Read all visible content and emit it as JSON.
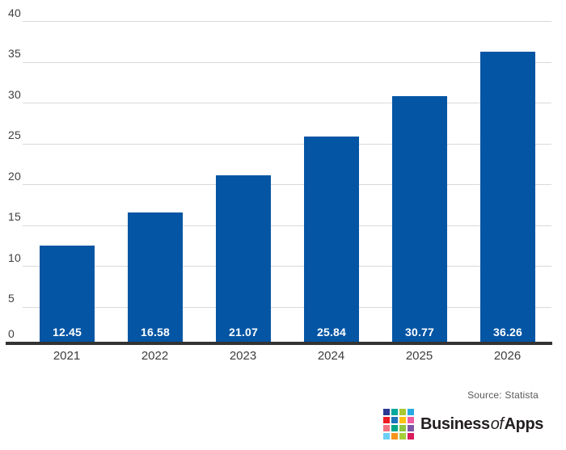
{
  "chart_data": {
    "type": "bar",
    "categories": [
      "2021",
      "2022",
      "2023",
      "2024",
      "2025",
      "2026"
    ],
    "values": [
      12.45,
      16.58,
      21.07,
      25.84,
      30.77,
      36.26
    ],
    "value_labels": [
      "12.45",
      "16.58",
      "21.07",
      "25.84",
      "30.77",
      "36.26"
    ],
    "title": "",
    "xlabel": "",
    "ylabel": "",
    "ylim": [
      0,
      40
    ],
    "yticks": [
      0,
      5,
      10,
      15,
      20,
      25,
      30,
      35,
      40
    ],
    "grid": "horizontal",
    "legend": "none",
    "bar_color": "#0455a4",
    "bar_label_color": "#ffffff",
    "gridline_color": "#d9d9d9",
    "axis_line_color": "#333333",
    "tick_label_color": "#3f3f3f"
  },
  "footer": {
    "source_label": "Source: Statista",
    "logo": {
      "brand_part1": "Business",
      "brand_part2": "of",
      "brand_part3": "Apps",
      "grid_colors": [
        "#2b3990",
        "#00a79d",
        "#aac832",
        "#27aae1",
        "#ed1c24",
        "#1c75bc",
        "#ffc20e",
        "#ef5ba1",
        "#f1737f",
        "#00a787",
        "#8dc63f",
        "#7e57a4",
        "#6dcff6",
        "#f7941d",
        "#a6ce39",
        "#d91c5c"
      ]
    }
  }
}
